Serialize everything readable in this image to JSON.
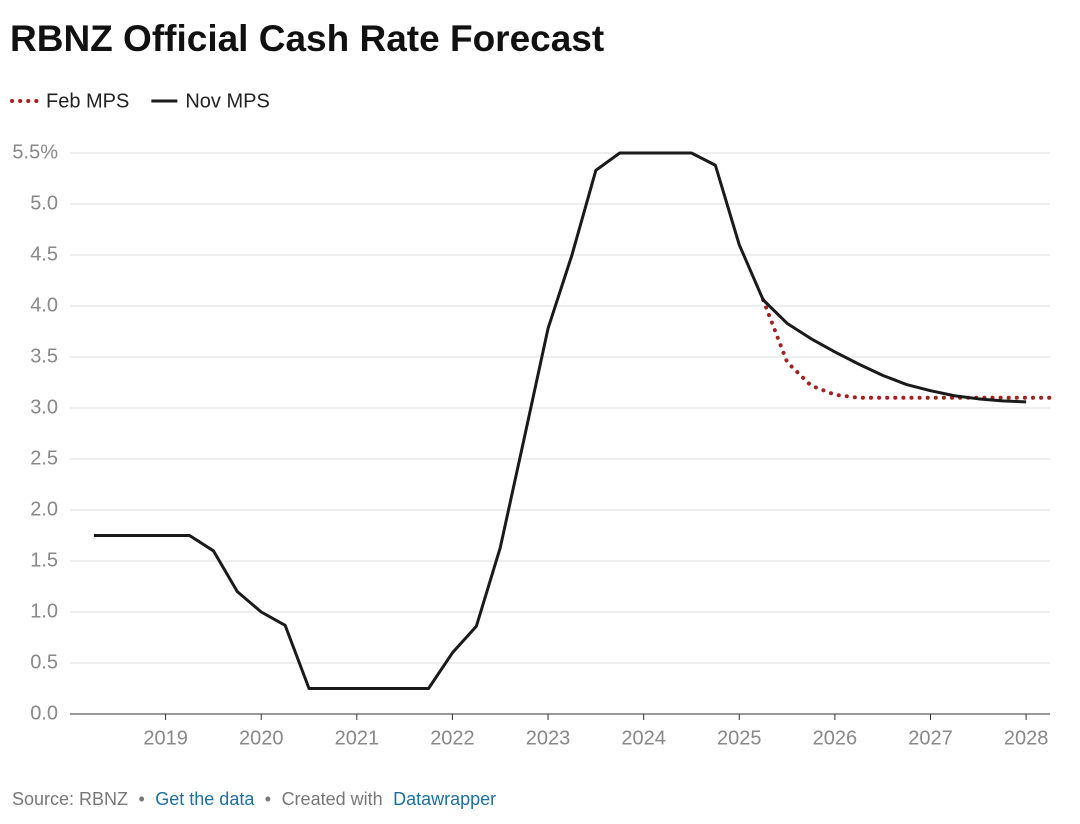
{
  "chart_data": {
    "type": "line",
    "title": "RBNZ Official Cash Rate Forecast",
    "x": [
      2018.25,
      2018.5,
      2018.75,
      2019,
      2019.25,
      2019.5,
      2019.75,
      2020,
      2020.25,
      2020.5,
      2020.75,
      2021,
      2021.25,
      2021.5,
      2021.75,
      2022,
      2022.25,
      2022.5,
      2022.75,
      2023,
      2023.25,
      2023.5,
      2023.75,
      2024,
      2024.25,
      2024.5,
      2024.75,
      2025,
      2025.25,
      2025.5,
      2025.75,
      2026,
      2026.25,
      2026.5,
      2026.75,
      2027,
      2027.25,
      2027.5,
      2027.75,
      2028,
      2028.25
    ],
    "series": [
      {
        "name": "Feb MPS",
        "color": "#a32020",
        "style": "dotted",
        "values": [
          null,
          null,
          null,
          null,
          null,
          null,
          null,
          null,
          null,
          null,
          null,
          null,
          null,
          null,
          null,
          null,
          null,
          null,
          null,
          null,
          null,
          null,
          null,
          null,
          null,
          null,
          null,
          null,
          4.06,
          3.45,
          3.22,
          3.13,
          3.1,
          3.1,
          3.1,
          3.1,
          3.1,
          3.1,
          3.1,
          3.1,
          3.1
        ]
      },
      {
        "name": "Nov MPS",
        "color": "#1a1a1a",
        "style": "solid",
        "values": [
          1.75,
          1.75,
          1.75,
          1.75,
          1.75,
          1.6,
          1.2,
          1.0,
          0.87,
          0.25,
          0.25,
          0.25,
          0.25,
          0.25,
          0.25,
          0.6,
          0.86,
          1.63,
          2.7,
          3.78,
          4.5,
          5.33,
          5.5,
          5.5,
          5.5,
          5.5,
          5.38,
          4.6,
          4.06,
          3.83,
          3.68,
          3.55,
          3.43,
          3.32,
          3.23,
          3.17,
          3.12,
          3.09,
          3.07,
          3.06,
          null
        ]
      }
    ],
    "xlim": [
      2018,
      2028.25
    ],
    "xticks": [
      2019,
      2020,
      2021,
      2022,
      2023,
      2024,
      2025,
      2026,
      2027,
      2028
    ],
    "ylim": [
      0,
      5.5
    ],
    "yticks": [
      {
        "value": 0,
        "label": "0.0"
      },
      0.5,
      {
        "value": 1,
        "label": "1.0"
      },
      1.5,
      {
        "value": 2,
        "label": "2.0"
      },
      2.5,
      {
        "value": 3,
        "label": "3.0"
      },
      3.5,
      {
        "value": 4,
        "label": "4.0"
      },
      4.5,
      {
        "value": 5,
        "label": "5.0"
      },
      {
        "value": 5.5,
        "label": "5.5%"
      }
    ],
    "grid": true,
    "legend": "top-left",
    "footer": {
      "source": "Source: RBNZ",
      "separator": "•",
      "get_data": "Get the data",
      "created_with": "Created with",
      "tool": "Datawrapper"
    }
  }
}
